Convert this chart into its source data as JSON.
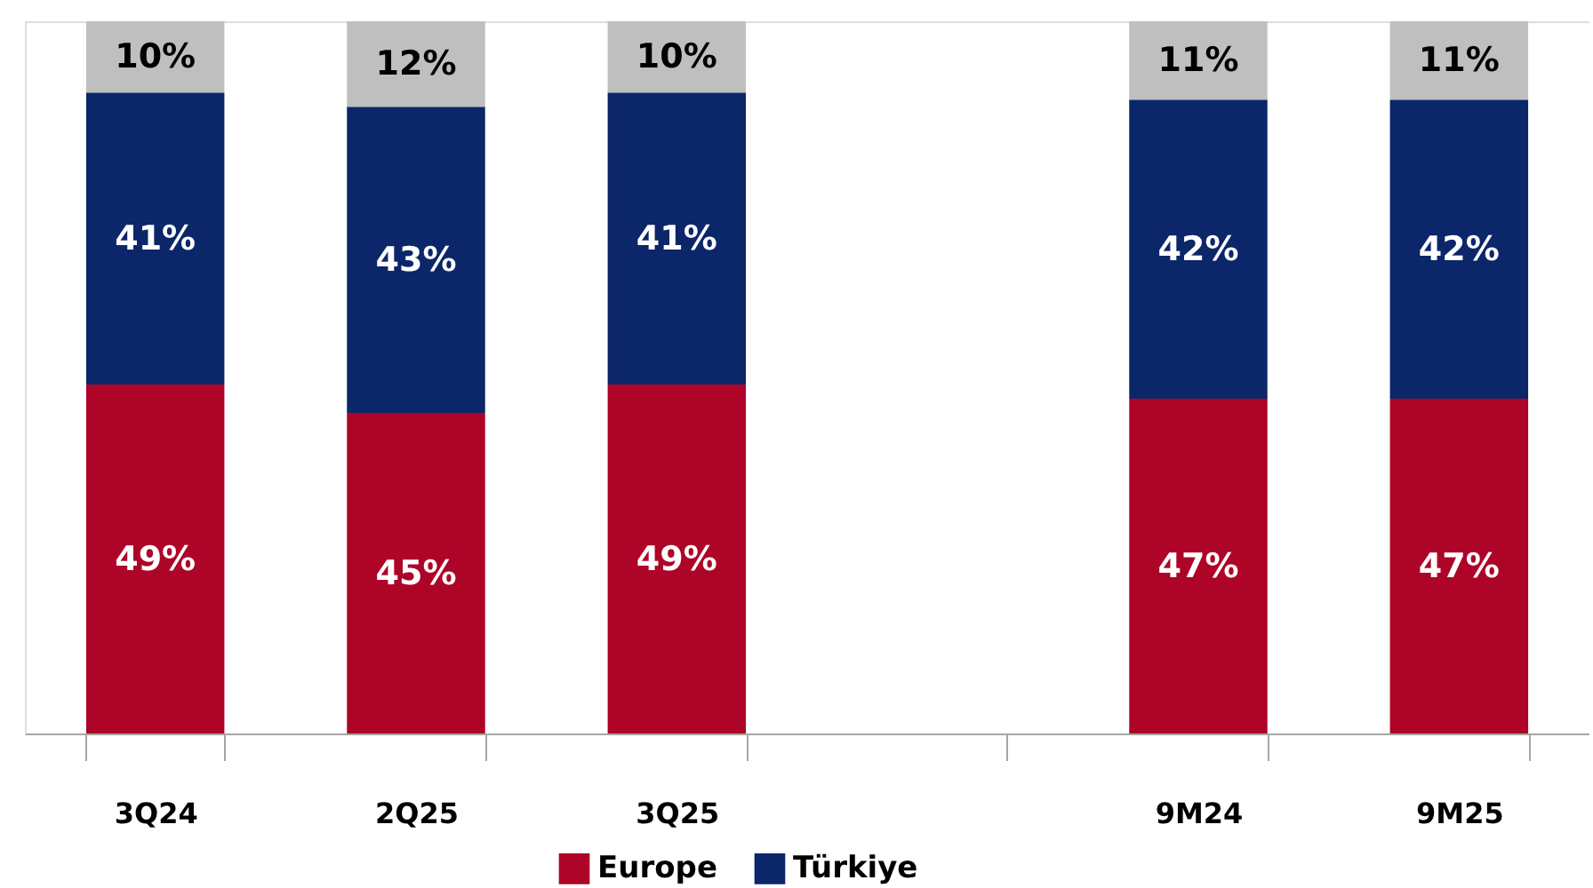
{
  "chart_data": {
    "type": "bar",
    "stacked": true,
    "categories": [
      "3Q24",
      "2Q25",
      "3Q25",
      null,
      "9M24",
      "9M25"
    ],
    "series": [
      {
        "name": "Europe",
        "color": "#ad0428",
        "values": [
          49,
          45,
          49,
          null,
          47,
          47
        ],
        "value_labels": [
          "49%",
          "45%",
          "49%",
          null,
          "47%",
          "47%"
        ]
      },
      {
        "name": "Türkiye",
        "color": "#0b2669",
        "values": [
          41,
          43,
          41,
          null,
          42,
          42
        ],
        "value_labels": [
          "41%",
          "43%",
          "41%",
          null,
          "42%",
          "42%"
        ]
      },
      {
        "color": "#bfbfbf",
        "values": [
          10,
          12,
          10,
          null,
          11,
          11
        ],
        "value_labels": [
          "10%",
          "12%",
          "10%",
          null,
          "11%",
          "11%"
        ]
      }
    ],
    "legend": "bottom"
  }
}
